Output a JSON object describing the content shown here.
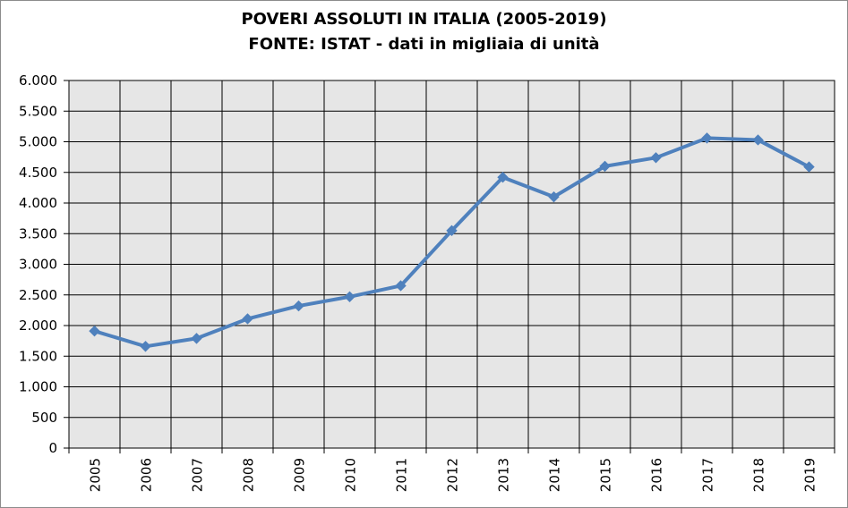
{
  "chart_data": {
    "type": "line",
    "title": "POVERI ASSOLUTI IN ITALIA (2005-2019)",
    "subtitle": "FONTE: ISTAT - dati in migliaia di unità",
    "xlabel": "",
    "ylabel": "",
    "ylim": [
      0,
      6000
    ],
    "yticks": [
      0,
      500,
      1000,
      1500,
      2000,
      2500,
      3000,
      3500,
      4000,
      4500,
      5000,
      5500,
      6000
    ],
    "ytick_labels": [
      "0",
      "500",
      "1.000",
      "1.500",
      "2.000",
      "2.500",
      "3.000",
      "3.500",
      "4.000",
      "4.500",
      "5.000",
      "5.500",
      "6.000"
    ],
    "categories": [
      "2005",
      "2006",
      "2007",
      "2008",
      "2009",
      "2010",
      "2011",
      "2012",
      "2013",
      "2014",
      "2015",
      "2016",
      "2017",
      "2018",
      "2019"
    ],
    "series": [
      {
        "values": [
          1910,
          1660,
          1790,
          2110,
          2320,
          2470,
          2650,
          3550,
          4420,
          4100,
          4600,
          4740,
          5060,
          5030,
          4590
        ],
        "color": "#4f81bd"
      }
    ],
    "grid": true,
    "plot_background": "#e6e6e6",
    "legend": "none"
  }
}
